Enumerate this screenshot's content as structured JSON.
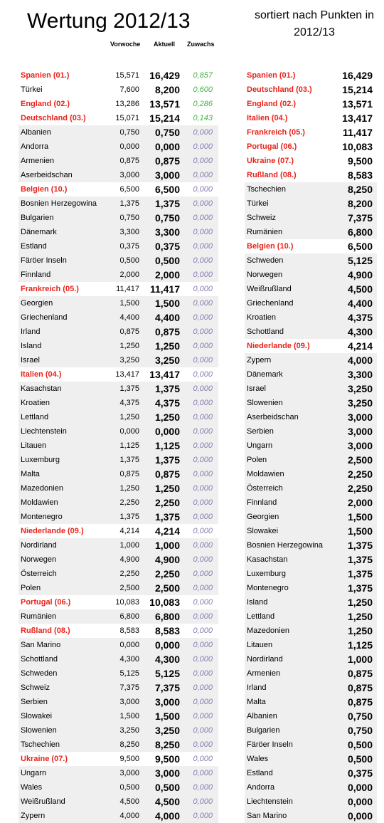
{
  "title": "Wertung 2012/13",
  "subtitle": "sortiert nach Punkten in 2012/13",
  "headers": {
    "previous_week": "Vorwoche",
    "current": "Aktuell",
    "gain": "Zuwachs"
  },
  "colors": {
    "highlight": "#e8231a",
    "gain_positive": "#44b545",
    "gain_zero": "#8a7bb0",
    "row_shade": "#efefef"
  },
  "left_table": [
    {
      "name": "Spanien (01.)",
      "prev": "15,571",
      "cur": "16,429",
      "gain": "0,857",
      "highlight": true
    },
    {
      "name": "Türkei",
      "prev": "7,600",
      "cur": "8,200",
      "gain": "0,600",
      "highlight": false,
      "white": true
    },
    {
      "name": "England (02.)",
      "prev": "13,286",
      "cur": "13,571",
      "gain": "0,286",
      "highlight": true
    },
    {
      "name": "Deutschland (03.)",
      "prev": "15,071",
      "cur": "15,214",
      "gain": "0,143",
      "highlight": true
    },
    {
      "name": "Albanien",
      "prev": "0,750",
      "cur": "0,750",
      "gain": "0,000",
      "highlight": false
    },
    {
      "name": "Andorra",
      "prev": "0,000",
      "cur": "0,000",
      "gain": "0,000",
      "highlight": false
    },
    {
      "name": "Armenien",
      "prev": "0,875",
      "cur": "0,875",
      "gain": "0,000",
      "highlight": false
    },
    {
      "name": "Aserbeidschan",
      "prev": "3,000",
      "cur": "3,000",
      "gain": "0,000",
      "highlight": false
    },
    {
      "name": "Belgien (10.)",
      "prev": "6,500",
      "cur": "6,500",
      "gain": "0,000",
      "highlight": true
    },
    {
      "name": "Bosnien Herzegowina",
      "prev": "1,375",
      "cur": "1,375",
      "gain": "0,000",
      "highlight": false
    },
    {
      "name": "Bulgarien",
      "prev": "0,750",
      "cur": "0,750",
      "gain": "0,000",
      "highlight": false
    },
    {
      "name": "Dänemark",
      "prev": "3,300",
      "cur": "3,300",
      "gain": "0,000",
      "highlight": false
    },
    {
      "name": "Estland",
      "prev": "0,375",
      "cur": "0,375",
      "gain": "0,000",
      "highlight": false
    },
    {
      "name": "Färöer Inseln",
      "prev": "0,500",
      "cur": "0,500",
      "gain": "0,000",
      "highlight": false
    },
    {
      "name": "Finnland",
      "prev": "2,000",
      "cur": "2,000",
      "gain": "0,000",
      "highlight": false
    },
    {
      "name": "Frankreich (05.)",
      "prev": "11,417",
      "cur": "11,417",
      "gain": "0,000",
      "highlight": true
    },
    {
      "name": "Georgien",
      "prev": "1,500",
      "cur": "1,500",
      "gain": "0,000",
      "highlight": false
    },
    {
      "name": "Griechenland",
      "prev": "4,400",
      "cur": "4,400",
      "gain": "0,000",
      "highlight": false
    },
    {
      "name": "Irland",
      "prev": "0,875",
      "cur": "0,875",
      "gain": "0,000",
      "highlight": false
    },
    {
      "name": "Island",
      "prev": "1,250",
      "cur": "1,250",
      "gain": "0,000",
      "highlight": false
    },
    {
      "name": "Israel",
      "prev": "3,250",
      "cur": "3,250",
      "gain": "0,000",
      "highlight": false
    },
    {
      "name": "Italien (04.)",
      "prev": "13,417",
      "cur": "13,417",
      "gain": "0,000",
      "highlight": true
    },
    {
      "name": "Kasachstan",
      "prev": "1,375",
      "cur": "1,375",
      "gain": "0,000",
      "highlight": false
    },
    {
      "name": "Kroatien",
      "prev": "4,375",
      "cur": "4,375",
      "gain": "0,000",
      "highlight": false
    },
    {
      "name": "Lettland",
      "prev": "1,250",
      "cur": "1,250",
      "gain": "0,000",
      "highlight": false
    },
    {
      "name": "Liechtenstein",
      "prev": "0,000",
      "cur": "0,000",
      "gain": "0,000",
      "highlight": false
    },
    {
      "name": "Litauen",
      "prev": "1,125",
      "cur": "1,125",
      "gain": "0,000",
      "highlight": false
    },
    {
      "name": "Luxemburg",
      "prev": "1,375",
      "cur": "1,375",
      "gain": "0,000",
      "highlight": false
    },
    {
      "name": "Malta",
      "prev": "0,875",
      "cur": "0,875",
      "gain": "0,000",
      "highlight": false
    },
    {
      "name": "Mazedonien",
      "prev": "1,250",
      "cur": "1,250",
      "gain": "0,000",
      "highlight": false
    },
    {
      "name": "Moldawien",
      "prev": "2,250",
      "cur": "2,250",
      "gain": "0,000",
      "highlight": false
    },
    {
      "name": "Montenegro",
      "prev": "1,375",
      "cur": "1,375",
      "gain": "0,000",
      "highlight": false
    },
    {
      "name": "Niederlande (09.)",
      "prev": "4,214",
      "cur": "4,214",
      "gain": "0,000",
      "highlight": true
    },
    {
      "name": "Nordirland",
      "prev": "1,000",
      "cur": "1,000",
      "gain": "0,000",
      "highlight": false
    },
    {
      "name": "Norwegen",
      "prev": "4,900",
      "cur": "4,900",
      "gain": "0,000",
      "highlight": false
    },
    {
      "name": "Österreich",
      "prev": "2,250",
      "cur": "2,250",
      "gain": "0,000",
      "highlight": false
    },
    {
      "name": "Polen",
      "prev": "2,500",
      "cur": "2,500",
      "gain": "0,000",
      "highlight": false
    },
    {
      "name": "Portugal (06.)",
      "prev": "10,083",
      "cur": "10,083",
      "gain": "0,000",
      "highlight": true
    },
    {
      "name": "Rumänien",
      "prev": "6,800",
      "cur": "6,800",
      "gain": "0,000",
      "highlight": false
    },
    {
      "name": "Rußland (08.)",
      "prev": "8,583",
      "cur": "8,583",
      "gain": "0,000",
      "highlight": true
    },
    {
      "name": "San Marino",
      "prev": "0,000",
      "cur": "0,000",
      "gain": "0,000",
      "highlight": false
    },
    {
      "name": "Schottland",
      "prev": "4,300",
      "cur": "4,300",
      "gain": "0,000",
      "highlight": false
    },
    {
      "name": "Schweden",
      "prev": "5,125",
      "cur": "5,125",
      "gain": "0,000",
      "highlight": false
    },
    {
      "name": "Schweiz",
      "prev": "7,375",
      "cur": "7,375",
      "gain": "0,000",
      "highlight": false
    },
    {
      "name": "Serbien",
      "prev": "3,000",
      "cur": "3,000",
      "gain": "0,000",
      "highlight": false
    },
    {
      "name": "Slowakei",
      "prev": "1,500",
      "cur": "1,500",
      "gain": "0,000",
      "highlight": false
    },
    {
      "name": "Slowenien",
      "prev": "3,250",
      "cur": "3,250",
      "gain": "0,000",
      "highlight": false
    },
    {
      "name": "Tschechien",
      "prev": "8,250",
      "cur": "8,250",
      "gain": "0,000",
      "highlight": false
    },
    {
      "name": "Ukraine (07.)",
      "prev": "9,500",
      "cur": "9,500",
      "gain": "0,000",
      "highlight": true
    },
    {
      "name": "Ungarn",
      "prev": "3,000",
      "cur": "3,000",
      "gain": "0,000",
      "highlight": false
    },
    {
      "name": "Wales",
      "prev": "0,500",
      "cur": "0,500",
      "gain": "0,000",
      "highlight": false
    },
    {
      "name": "Weißrußland",
      "prev": "4,500",
      "cur": "4,500",
      "gain": "0,000",
      "highlight": false
    },
    {
      "name": "Zypern",
      "prev": "4,000",
      "cur": "4,000",
      "gain": "0,000",
      "highlight": false
    }
  ],
  "right_table": [
    {
      "name": "Spanien (01.)",
      "cur": "16,429",
      "highlight": true
    },
    {
      "name": "Deutschland (03.)",
      "cur": "15,214",
      "highlight": true
    },
    {
      "name": "England (02.)",
      "cur": "13,571",
      "highlight": true
    },
    {
      "name": "Italien (04.)",
      "cur": "13,417",
      "highlight": true
    },
    {
      "name": "Frankreich (05.)",
      "cur": "11,417",
      "highlight": true
    },
    {
      "name": "Portugal (06.)",
      "cur": "10,083",
      "highlight": true
    },
    {
      "name": "Ukraine (07.)",
      "cur": "9,500",
      "highlight": true
    },
    {
      "name": "Rußland (08.)",
      "cur": "8,583",
      "highlight": true
    },
    {
      "name": "Tschechien",
      "cur": "8,250",
      "highlight": false
    },
    {
      "name": "Türkei",
      "cur": "8,200",
      "highlight": false
    },
    {
      "name": "Schweiz",
      "cur": "7,375",
      "highlight": false
    },
    {
      "name": "Rumänien",
      "cur": "6,800",
      "highlight": false
    },
    {
      "name": "Belgien (10.)",
      "cur": "6,500",
      "highlight": true
    },
    {
      "name": "Schweden",
      "cur": "5,125",
      "highlight": false
    },
    {
      "name": "Norwegen",
      "cur": "4,900",
      "highlight": false
    },
    {
      "name": "Weißrußland",
      "cur": "4,500",
      "highlight": false
    },
    {
      "name": "Griechenland",
      "cur": "4,400",
      "highlight": false
    },
    {
      "name": "Kroatien",
      "cur": "4,375",
      "highlight": false
    },
    {
      "name": "Schottland",
      "cur": "4,300",
      "highlight": false
    },
    {
      "name": "Niederlande (09.)",
      "cur": "4,214",
      "highlight": true
    },
    {
      "name": "Zypern",
      "cur": "4,000",
      "highlight": false
    },
    {
      "name": "Dänemark",
      "cur": "3,300",
      "highlight": false
    },
    {
      "name": "Israel",
      "cur": "3,250",
      "highlight": false
    },
    {
      "name": "Slowenien",
      "cur": "3,250",
      "highlight": false
    },
    {
      "name": "Aserbeidschan",
      "cur": "3,000",
      "highlight": false
    },
    {
      "name": "Serbien",
      "cur": "3,000",
      "highlight": false
    },
    {
      "name": "Ungarn",
      "cur": "3,000",
      "highlight": false
    },
    {
      "name": "Polen",
      "cur": "2,500",
      "highlight": false
    },
    {
      "name": "Moldawien",
      "cur": "2,250",
      "highlight": false
    },
    {
      "name": "Österreich",
      "cur": "2,250",
      "highlight": false
    },
    {
      "name": "Finnland",
      "cur": "2,000",
      "highlight": false
    },
    {
      "name": "Georgien",
      "cur": "1,500",
      "highlight": false
    },
    {
      "name": "Slowakei",
      "cur": "1,500",
      "highlight": false
    },
    {
      "name": "Bosnien Herzegowina",
      "cur": "1,375",
      "highlight": false
    },
    {
      "name": "Kasachstan",
      "cur": "1,375",
      "highlight": false
    },
    {
      "name": "Luxemburg",
      "cur": "1,375",
      "highlight": false
    },
    {
      "name": "Montenegro",
      "cur": "1,375",
      "highlight": false
    },
    {
      "name": "Island",
      "cur": "1,250",
      "highlight": false
    },
    {
      "name": "Lettland",
      "cur": "1,250",
      "highlight": false
    },
    {
      "name": "Mazedonien",
      "cur": "1,250",
      "highlight": false
    },
    {
      "name": "Litauen",
      "cur": "1,125",
      "highlight": false
    },
    {
      "name": "Nordirland",
      "cur": "1,000",
      "highlight": false
    },
    {
      "name": "Armenien",
      "cur": "0,875",
      "highlight": false
    },
    {
      "name": "Irland",
      "cur": "0,875",
      "highlight": false
    },
    {
      "name": "Malta",
      "cur": "0,875",
      "highlight": false
    },
    {
      "name": "Albanien",
      "cur": "0,750",
      "highlight": false
    },
    {
      "name": "Bulgarien",
      "cur": "0,750",
      "highlight": false
    },
    {
      "name": "Färöer Inseln",
      "cur": "0,500",
      "highlight": false
    },
    {
      "name": "Wales",
      "cur": "0,500",
      "highlight": false
    },
    {
      "name": "Estland",
      "cur": "0,375",
      "highlight": false
    },
    {
      "name": "Andorra",
      "cur": "0,000",
      "highlight": false
    },
    {
      "name": "Liechtenstein",
      "cur": "0,000",
      "highlight": false
    },
    {
      "name": "San Marino",
      "cur": "0,000",
      "highlight": false
    }
  ]
}
